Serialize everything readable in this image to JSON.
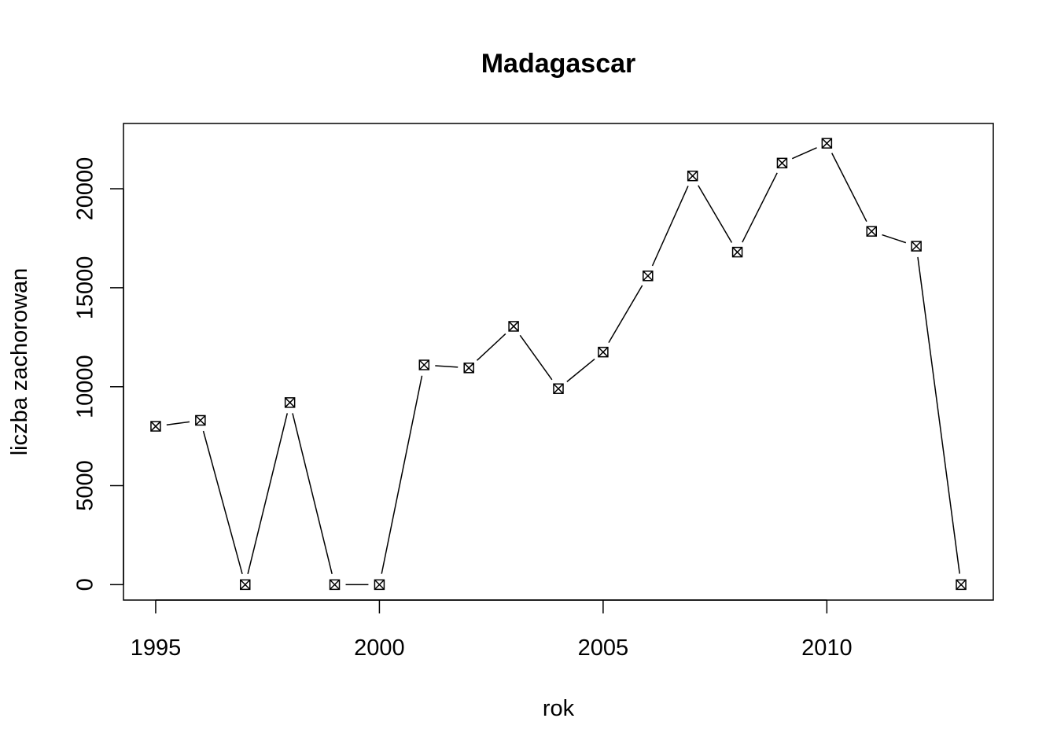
{
  "chart_data": {
    "type": "line",
    "title": "Madagascar",
    "xlabel": "rok",
    "ylabel": "liczba zachorowan",
    "x": [
      1995,
      1996,
      1997,
      1998,
      1999,
      2000,
      2001,
      2002,
      2003,
      2004,
      2005,
      2006,
      2007,
      2008,
      2009,
      2010,
      2011,
      2012,
      2013
    ],
    "series": [
      {
        "values": [
          8000,
          8300,
          0,
          9200,
          0,
          0,
          11100,
          10950,
          13050,
          9900,
          11750,
          15600,
          20650,
          16800,
          21300,
          22300,
          17850,
          17100,
          0
        ]
      }
    ],
    "xlim": [
      1994.28,
      2013.72
    ],
    "ylim": [
      -780,
      23300
    ],
    "xticks": [
      1995,
      2000,
      2005,
      2010
    ],
    "yticks": [
      0,
      5000,
      10000,
      15000,
      20000
    ],
    "grid": false,
    "legend": "none",
    "marker": "boxed-x",
    "line_color": "#000000"
  }
}
